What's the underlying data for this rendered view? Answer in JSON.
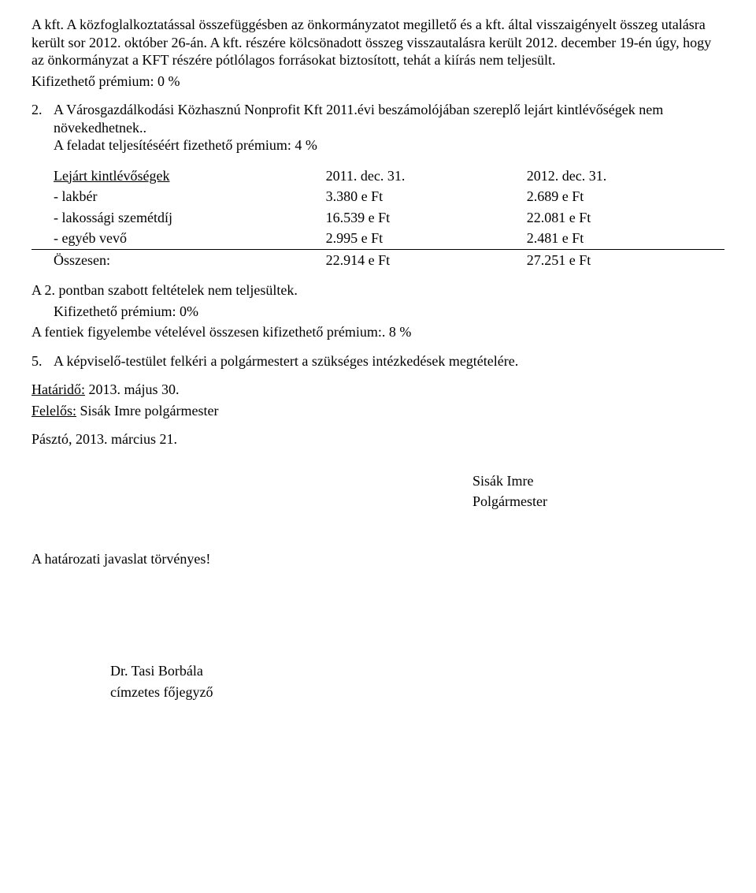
{
  "para1": "A kft. A közfoglalkoztatással összefüggésben az önkormányzatot megillető és a kft. által visszaigényelt összeg utalásra került sor 2012. október 26-án. A kft. részére kölcsönadott összeg visszautalásra került 2012. december 19-én úgy, hogy az önkormányzat a KFT részére pótlólagos forrásokat biztosított, tehát a kiírás nem teljesült.",
  "premium0": "Kifizethető prémium: 0 %",
  "item2_num": "2.",
  "item2_text": "A Városgazdálkodási Közhasznú Nonprofit Kft 2011.évi beszámolójában szereplő lejárt kintlévőségek nem növekedhetnek..",
  "item2_premium": "A feladat teljesítéséért fizethető prémium: 4 %",
  "table": {
    "header": {
      "c0": "Lejárt kintlévőségek",
      "c1": "2011. dec. 31.",
      "c2": "2012. dec. 31."
    },
    "rows": [
      {
        "c0": "- lakbér",
        "c1": "3.380 e Ft",
        "c2": "2.689 e Ft"
      },
      {
        "c0": "- lakossági szemétdíj",
        "c1": "16.539 e Ft",
        "c2": "22.081 e Ft"
      },
      {
        "c0": "- egyéb vevő",
        "c1": "2.995 e Ft",
        "c2": "2.481 e Ft"
      }
    ],
    "total": {
      "c0": "Összesen:",
      "c1": "22.914 e Ft",
      "c2": "27.251 e Ft"
    }
  },
  "para_a2_1": "A 2. pontban szabott feltételek nem teljesültek.",
  "para_a2_2": "Kifizethető prémium: 0%",
  "para_a2_3": "A fentiek figyelembe vételével összesen kifizethető prémium:. 8 %",
  "item5_num": "5.",
  "item5_text": "A képviselő-testület felkéri a polgármestert a szükséges intézkedések megtételére.",
  "deadline_label": "Határidő:",
  "deadline_value": " 2013. május 30.",
  "responsible_label": "Felelős:",
  "responsible_value": "   Sisák Imre polgármester",
  "place_date": "Pásztó, 2013. március 21.",
  "sig_name": "Sisák Imre",
  "sig_title": "Polgármester",
  "legal": "A határozati javaslat törvényes!",
  "clerk_name": "Dr. Tasi Borbála",
  "clerk_title": "címzetes főjegyző"
}
